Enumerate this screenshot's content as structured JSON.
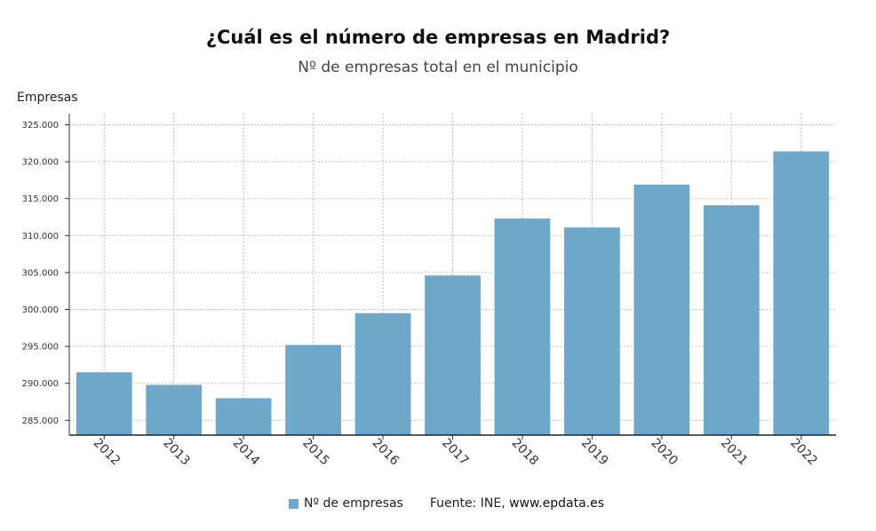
{
  "chart_data": {
    "type": "bar",
    "title": "¿Cuál es el número de empresas en Madrid?",
    "subtitle": "Nº de empresas total en el municipio",
    "ylabel": "Empresas",
    "xlabel": "",
    "categories": [
      "2012",
      "2013",
      "2014",
      "2015",
      "2016",
      "2017",
      "2018",
      "2019",
      "2020",
      "2021",
      "2022"
    ],
    "series": [
      {
        "name": "Nº de empresas",
        "values": [
          291500,
          289800,
          288000,
          295200,
          299500,
          304600,
          312300,
          311100,
          316900,
          314100,
          321400
        ]
      }
    ],
    "ylim": [
      283000,
      326500
    ],
    "yticks": [
      285000,
      290000,
      295000,
      300000,
      305000,
      310000,
      315000,
      320000,
      325000
    ],
    "ytick_labels": [
      "285.000",
      "290.000",
      "295.000",
      "300.000",
      "305.000",
      "310.000",
      "315.000",
      "320.000",
      "325.000"
    ],
    "grid": true,
    "legend_position": "bottom",
    "bar_color": "#6ea7c9"
  },
  "footer": {
    "legend_label": "Nº de empresas",
    "source_prefix": "Fuente: INE, ",
    "source_site": "www.epdata.es"
  }
}
